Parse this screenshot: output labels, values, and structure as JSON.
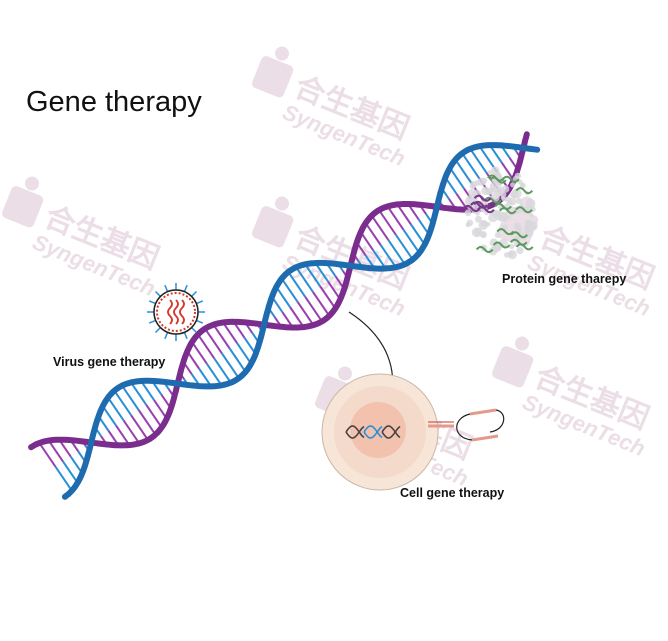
{
  "title": "Gene therapy",
  "labels": {
    "virus": "Virus gene therapy",
    "protein": "Protein gene tharepy",
    "cell": "Cell gene therapy"
  },
  "watermark": {
    "cn": "合生基因",
    "en": "SyngenTech"
  },
  "colors": {
    "strand_blue": "#1e6bb0",
    "strand_purple": "#7b2d8e",
    "rung_blue": "#2a8fd6",
    "rung_purple": "#9b3fb0",
    "watermark": "#e9dbe4",
    "virus_red": "#d13a2c",
    "cell_fill": "#f6e2d4",
    "nucleus_fill": "#f2b8a4",
    "protein_green": "#5a9a5e",
    "protein_purple": "#7a3a8a"
  },
  "icons": {
    "virus": "virus-icon",
    "protein": "protein-structure-icon",
    "cell": "cell-icon",
    "arrow": "curved-arrow-icon"
  }
}
